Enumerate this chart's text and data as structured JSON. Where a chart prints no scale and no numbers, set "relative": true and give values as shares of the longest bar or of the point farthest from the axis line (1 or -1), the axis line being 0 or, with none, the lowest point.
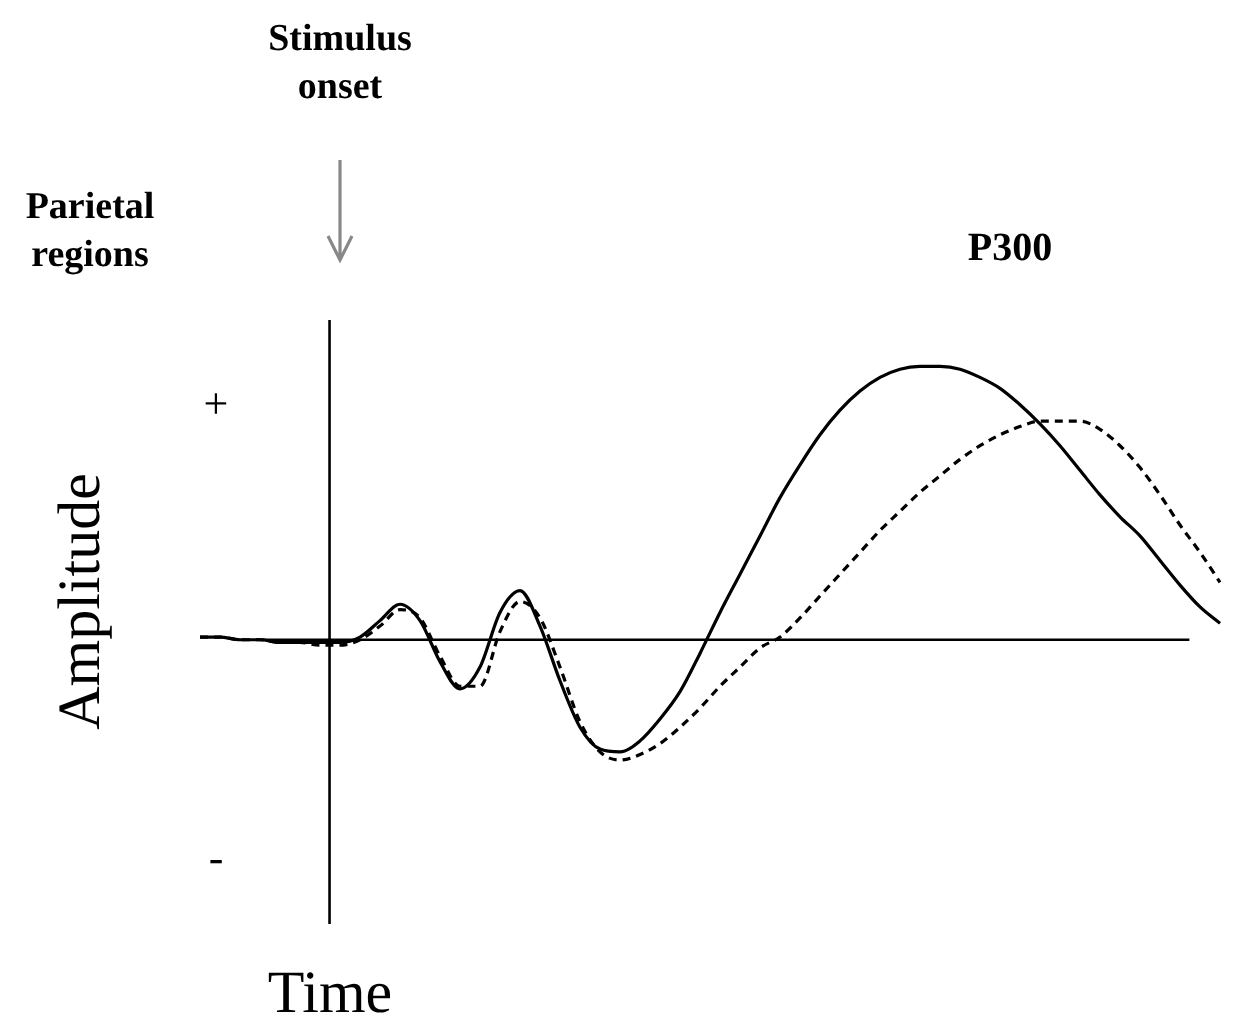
{
  "chart_data": {
    "type": "line",
    "relative": true,
    "xlabel": "Time",
    "ylabel": "Amplitude",
    "marker": "none",
    "annotations": [
      "Stimulus onset",
      "Parietal regions",
      "+",
      "-",
      "P300"
    ],
    "categories": [
      null,
      null,
      null,
      null,
      null,
      null,
      null,
      null,
      null,
      null,
      null,
      null,
      null,
      null,
      null,
      null,
      null,
      null,
      null,
      null,
      null,
      null,
      null,
      null,
      null,
      null,
      null,
      null,
      null,
      null,
      null,
      null,
      null,
      null,
      null,
      null,
      null,
      null,
      null,
      null,
      null,
      null,
      null,
      null,
      null,
      null,
      null,
      null,
      null,
      null,
      null,
      null
    ],
    "series": [
      {
        "color": "#000000",
        "line_style": "solid",
        "values": [
          0.01,
          0.01,
          0,
          0,
          -0.01,
          -0.01,
          -0.01,
          -0.01,
          0.01,
          0.07,
          0.13,
          0.07,
          -0.08,
          -0.18,
          -0.1,
          0.1,
          0.18,
          0.05,
          -0.15,
          -0.32,
          -0.4,
          -0.41,
          -0.37,
          -0.29,
          -0.19,
          -0.05,
          0.1,
          0.24,
          0.38,
          0.52,
          0.64,
          0.75,
          0.84,
          0.91,
          0.96,
          0.99,
          1,
          1,
          0.99,
          0.96,
          0.92,
          0.86,
          0.79,
          0.71,
          0.62,
          0.53,
          0.45,
          0.38,
          0.29,
          0.2,
          0.12,
          0.06
        ]
      },
      {
        "color": "#000000",
        "line_style": "dashed",
        "values": [
          0.01,
          0.01,
          0,
          0,
          -0.01,
          -0.01,
          -0.02,
          -0.02,
          0,
          0.05,
          0.11,
          0.08,
          -0.06,
          -0.17,
          -0.17,
          0.03,
          0.14,
          0.08,
          -0.1,
          -0.3,
          -0.41,
          -0.44,
          -0.42,
          -0.38,
          -0.32,
          -0.25,
          -0.17,
          -0.1,
          -0.03,
          0.01,
          0.08,
          0.16,
          0.24,
          0.32,
          0.4,
          0.47,
          0.54,
          0.6,
          0.66,
          0.71,
          0.75,
          0.78,
          0.8,
          0.8,
          0.8,
          0.77,
          0.71,
          0.63,
          0.53,
          0.42,
          0.32,
          0.21
        ]
      }
    ]
  }
}
